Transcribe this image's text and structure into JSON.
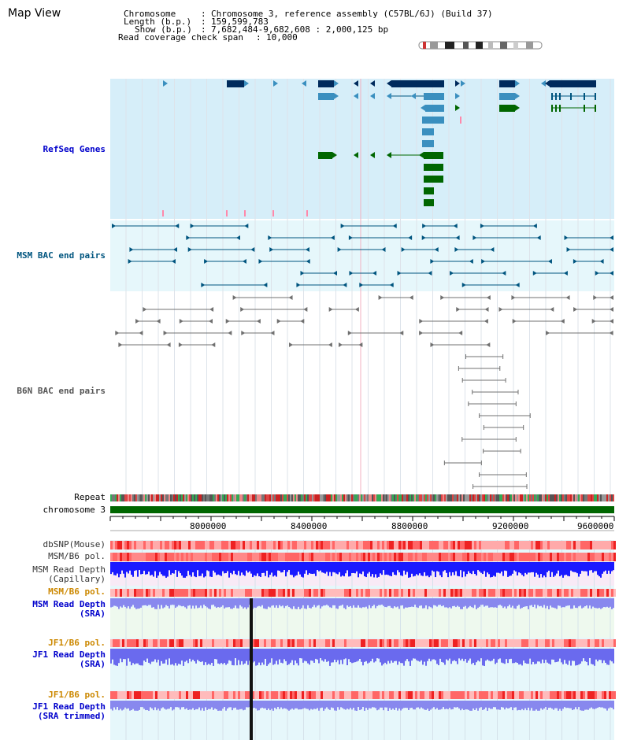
{
  "title": "Map View",
  "info": {
    "chromosome_key": "Chromosome",
    "chromosome_val": "Chromosome 3, reference assembly (C57BL/6J) (Build 37)",
    "length_key": "Length (b.p.)",
    "length_val": "159,599,783",
    "show_key": "Show (b.p.)",
    "show_val": "7,682,484-9,682,608 : 2,000,125 bp",
    "span_key": "Read coverage check span",
    "span_val": "10,000"
  },
  "tracks": {
    "refseq": "RefSeq Genes",
    "msm_bac": "MSM BAC end pairs",
    "b6n_bac": "B6N BAC end pairs",
    "repeat": "Repeat",
    "chromosome": "chromosome 3",
    "dbsnp": "dbSNP(Mouse)",
    "msm_b6_pol_1": "MSM/B6 pol.",
    "msm_depth_cap_1": "MSM Read Depth",
    "msm_depth_cap_2": "(Capillary)",
    "msm_b6_pol_2": "MSM/B6 pol.",
    "msm_depth_sra_1": "MSM Read Depth",
    "msm_depth_sra_2": "(SRA)",
    "jf1_b6_pol_1": "JF1/B6 pol.",
    "jf1_depth_sra_1": "JF1 Read Depth",
    "jf1_depth_sra_2": "(SRA)",
    "jf1_b6_pol_2": "JF1/B6 pol.",
    "jf1_depth_trim_1": "JF1 Read Depth",
    "jf1_depth_trim_2": "(SRA trimmed)"
  },
  "axis_ticks": [
    "8000000",
    "8400000",
    "8800000",
    "9200000",
    "9600000"
  ],
  "colors": {
    "refseq_bg": "#d6eef9",
    "msm_bg": "#e6f7fb",
    "dark_navy": "#002a5c",
    "light_blue": "#3a8fbf",
    "dark_green": "#006600",
    "teal_line": "#00557f",
    "gray_line": "#606060",
    "depth_blue": "#1a1aff",
    "depth_periwinkle": "#7777ee",
    "pol_red": "#ff5555"
  }
}
